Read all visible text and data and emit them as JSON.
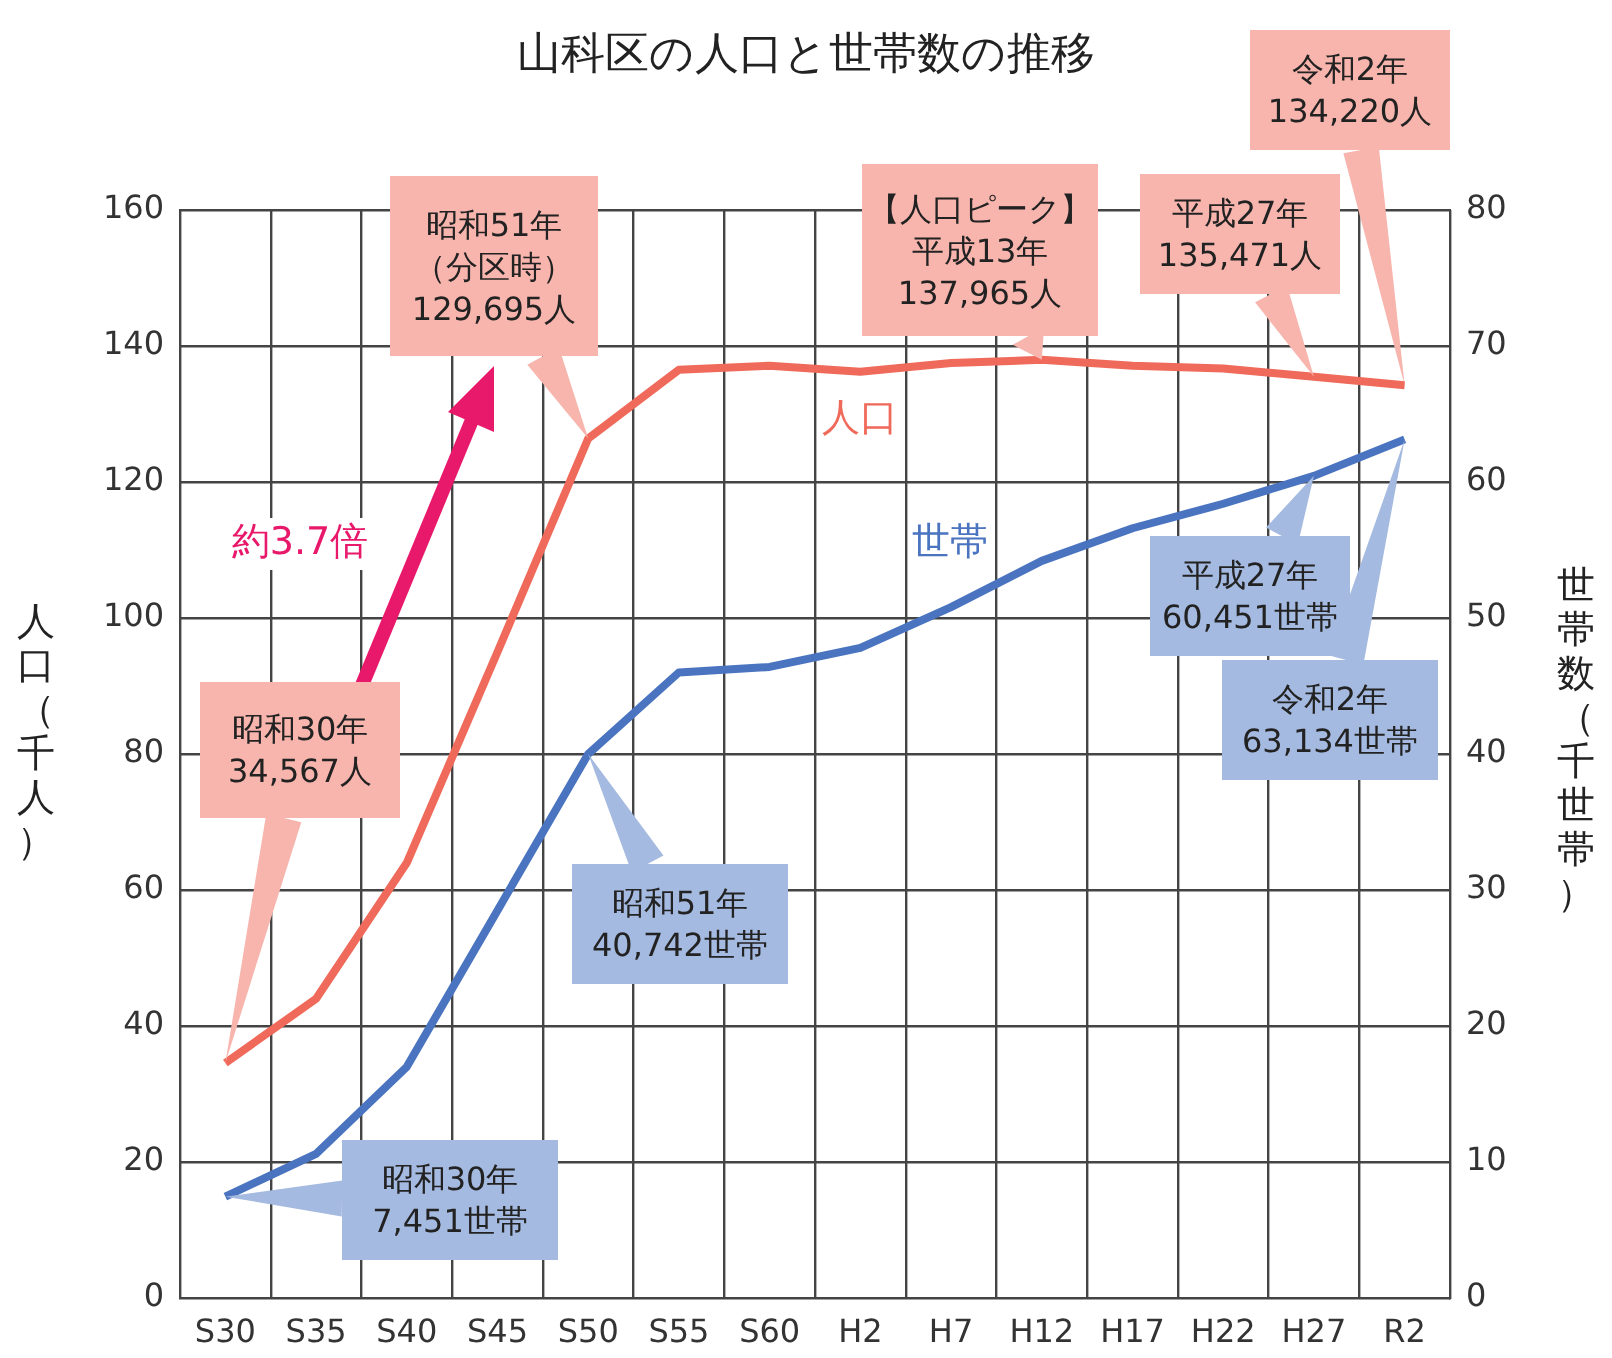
{
  "chart_data": {
    "type": "line",
    "title": "山科区の人口と世帯数の推移",
    "ylabel": "人口（千人）",
    "y2label": "世帯数（千世帯）",
    "categories": [
      "S30",
      "S35",
      "S40",
      "S45",
      "S50",
      "S55",
      "S60",
      "H2",
      "H7",
      "H12",
      "H17",
      "H22",
      "H27",
      "R2"
    ],
    "series": [
      {
        "name": "人口",
        "color": "#ef6a5a",
        "values": [
          34.567,
          44,
          64,
          95,
          126.4,
          136.5,
          137.1,
          136.2,
          137.5,
          137.965,
          137.1,
          136.7,
          135.471,
          134.22
        ]
      },
      {
        "name": "世帯",
        "color": "#4a74c0",
        "axis": "y2",
        "values": [
          7.451,
          10.6,
          17,
          28.5,
          40,
          46,
          46.4,
          47.8,
          50.8,
          54.2,
          56.6,
          58.4,
          60.451,
          63.134
        ]
      }
    ],
    "ylim": [
      0,
      160
    ],
    "yticks": [
      0,
      20,
      40,
      60,
      80,
      100,
      120,
      140,
      160
    ],
    "y2lim": [
      0,
      80
    ],
    "y2ticks": [
      0,
      10,
      20,
      30,
      40,
      50,
      60,
      70,
      80
    ],
    "grid": true,
    "legend": false,
    "marker": "none",
    "line_style": "solid",
    "annotations": [
      "昭和30年34,567人",
      "昭和51年（分区時）129,695人",
      "【人口ピーク】平成13年137,965人",
      "平成27年135,471人",
      "令和2年134,220人",
      "平成27年60,451世帯",
      "令和2年63,134世帯",
      "昭和51年40,742世帯",
      "昭和30年7,451世帯",
      "約3.7倍"
    ]
  }
}
